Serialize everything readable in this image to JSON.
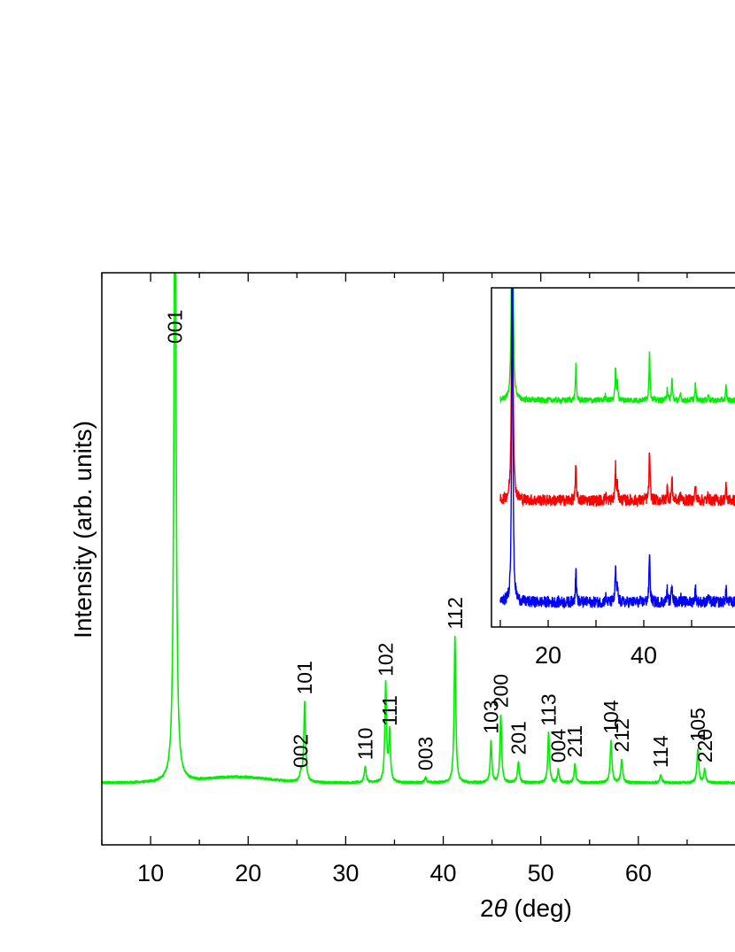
{
  "chart_data": {
    "type": "line",
    "xlabel_prefix": "2",
    "xlabel_symbol": "θ",
    "xlabel_suffix": " (deg)",
    "ylabel": "Intensity (arb. units)",
    "xlim": [
      5,
      70
    ],
    "xticks": [
      10,
      20,
      30,
      40,
      50,
      60
    ],
    "series": [
      {
        "color": "#00ee00",
        "baseline": 6,
        "hump": {
          "center": 19,
          "width": 4.5,
          "height": 2.2
        },
        "noise": 0.45,
        "peaks": [
          {
            "x": 12.5,
            "h": 250,
            "w": 0.13,
            "label": "001"
          },
          {
            "x": 25.4,
            "h": 3,
            "w": 0.12,
            "label": "002"
          },
          {
            "x": 25.8,
            "h": 31,
            "w": 0.11,
            "label": "101"
          },
          {
            "x": 32.0,
            "h": 6,
            "w": 0.12,
            "label": "110"
          },
          {
            "x": 34.1,
            "h": 38,
            "w": 0.1,
            "label": "102"
          },
          {
            "x": 34.5,
            "h": 19,
            "w": 0.1,
            "label": "111"
          },
          {
            "x": 38.2,
            "h": 2,
            "w": 0.12,
            "label": "003"
          },
          {
            "x": 41.2,
            "h": 56,
            "w": 0.1,
            "label": "112"
          },
          {
            "x": 44.9,
            "h": 16,
            "w": 0.1,
            "label": "103"
          },
          {
            "x": 45.9,
            "h": 26,
            "w": 0.1,
            "label": "200"
          },
          {
            "x": 47.7,
            "h": 8,
            "w": 0.11,
            "label": "201"
          },
          {
            "x": 50.8,
            "h": 19,
            "w": 0.1,
            "label": "113"
          },
          {
            "x": 51.8,
            "h": 5,
            "w": 0.1,
            "label": "004"
          },
          {
            "x": 53.5,
            "h": 7,
            "w": 0.1,
            "label": "211"
          },
          {
            "x": 57.2,
            "h": 16,
            "w": 0.11,
            "label": "104"
          },
          {
            "x": 58.3,
            "h": 9,
            "w": 0.11,
            "label": "212"
          },
          {
            "x": 62.3,
            "h": 3,
            "w": 0.12,
            "label": "114"
          },
          {
            "x": 66.1,
            "h": 13,
            "w": 0.11,
            "label": "105"
          },
          {
            "x": 66.8,
            "h": 5,
            "w": 0.11,
            "label": "220"
          }
        ]
      }
    ],
    "inset": {
      "xticks": [
        20,
        40
      ],
      "xlim": [
        10,
        60
      ],
      "series": [
        {
          "color": "#00ee00",
          "offset": 2.0,
          "noise": 0.03
        },
        {
          "color": "#ff0000",
          "offset": 1.0,
          "noise": 0.06
        },
        {
          "color": "#0000ff",
          "offset": 0.0,
          "noise": 0.06
        }
      ],
      "peaks": [
        {
          "x": 12.5,
          "h": 5.0
        },
        {
          "x": 25.8,
          "h": 0.36
        },
        {
          "x": 32.0,
          "h": 0.06
        },
        {
          "x": 34.1,
          "h": 0.34
        },
        {
          "x": 34.5,
          "h": 0.16
        },
        {
          "x": 41.2,
          "h": 0.52
        },
        {
          "x": 44.9,
          "h": 0.13
        },
        {
          "x": 45.9,
          "h": 0.22
        },
        {
          "x": 47.7,
          "h": 0.06
        },
        {
          "x": 50.8,
          "h": 0.16
        },
        {
          "x": 53.5,
          "h": 0.06
        },
        {
          "x": 57.2,
          "h": 0.14
        }
      ]
    }
  }
}
